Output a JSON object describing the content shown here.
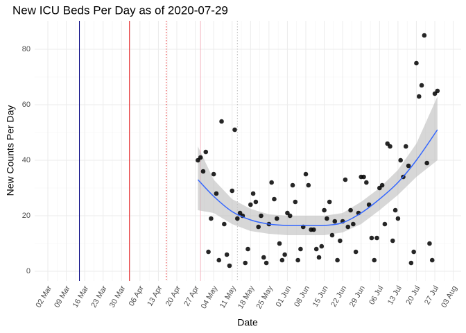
{
  "chart_data": {
    "type": "scatter",
    "title": "New ICU Beds Per Day as of 2020-07-29",
    "xlabel": "Date",
    "ylabel": "New Counts Per Day",
    "xlim": [
      "26 Feb",
      "06 Aug"
    ],
    "xticks": [
      "02 Mar",
      "09 Mar",
      "16 Mar",
      "23 Mar",
      "30 Mar",
      "06 Apr",
      "13 Apr",
      "20 Apr",
      "27 Apr",
      "04 May",
      "11 May",
      "18 May",
      "25 May",
      "01 Jun",
      "08 Jun",
      "15 Jun",
      "22 Jun",
      "29 Jun",
      "06 Jul",
      "13 Jul",
      "20 Jul",
      "27 Jul",
      "03 Aug"
    ],
    "ylim": [
      -3.5,
      90.25
    ],
    "yticks": [
      0,
      20,
      40,
      60,
      80
    ],
    "grid": true,
    "x": [
      "28 Apr",
      "29 Apr",
      "30 Apr",
      "01 May",
      "02 May",
      "03 May",
      "04 May",
      "05 May",
      "06 May",
      "07 May",
      "08 May",
      "09 May",
      "10 May",
      "11 May",
      "12 May",
      "13 May",
      "14 May",
      "15 May",
      "16 May",
      "17 May",
      "18 May",
      "19 May",
      "20 May",
      "21 May",
      "22 May",
      "23 May",
      "24 May",
      "25 May",
      "26 May",
      "27 May",
      "28 May",
      "29 May",
      "30 May",
      "31 May",
      "01 Jun",
      "02 Jun",
      "03 Jun",
      "04 Jun",
      "05 Jun",
      "06 Jun",
      "07 Jun",
      "08 Jun",
      "09 Jun",
      "10 Jun",
      "11 Jun",
      "12 Jun",
      "13 Jun",
      "14 Jun",
      "15 Jun",
      "16 Jun",
      "17 Jun",
      "18 Jun",
      "19 Jun",
      "20 Jun",
      "21 Jun",
      "22 Jun",
      "23 Jun",
      "24 Jun",
      "25 Jun",
      "26 Jun",
      "27 Jun",
      "28 Jun",
      "29 Jun",
      "30 Jun",
      "01 Jul",
      "02 Jul",
      "03 Jul",
      "04 Jul",
      "05 Jul",
      "06 Jul",
      "07 Jul",
      "08 Jul",
      "09 Jul",
      "10 Jul",
      "11 Jul",
      "12 Jul",
      "13 Jul",
      "14 Jul",
      "15 Jul",
      "16 Jul",
      "17 Jul",
      "18 Jul",
      "19 Jul",
      "20 Jul",
      "21 Jul",
      "22 Jul",
      "23 Jul",
      "24 Jul",
      "25 Jul",
      "26 Jul",
      "27 Jul",
      "28 Jul"
    ],
    "series": [
      {
        "color": "#000000",
        "values": [
          40,
          41,
          36,
          43,
          7,
          19,
          35,
          28,
          4,
          54,
          17,
          6,
          2,
          29,
          51,
          19,
          21,
          20,
          3,
          8,
          24,
          28,
          25,
          16,
          20,
          5,
          3,
          17,
          32,
          26,
          19,
          10,
          4,
          6,
          21,
          20,
          31,
          25,
          4,
          8,
          16,
          35,
          31,
          15,
          15,
          8,
          5,
          9,
          22,
          19,
          25,
          13,
          18,
          4,
          11,
          18,
          33,
          16,
          22,
          17,
          7,
          21,
          34,
          34,
          32,
          24,
          12,
          4,
          12,
          30,
          31,
          17,
          46,
          45,
          11,
          22,
          19,
          40,
          34,
          45,
          38,
          3,
          7,
          75,
          63,
          67,
          85,
          39,
          10,
          4,
          64,
          65
        ]
      }
    ],
    "smooth": {
      "color": "#3366ff",
      "band_color": "#bdbdbd",
      "x": [
        "28 Apr",
        "04 May",
        "11 May",
        "18 May",
        "25 May",
        "01 Jun",
        "08 Jun",
        "15 Jun",
        "22 Jun",
        "29 Jun",
        "06 Jul",
        "13 Jul",
        "20 Jul",
        "28 Jul"
      ],
      "values": [
        33,
        27,
        21.5,
        18.5,
        17,
        16.5,
        16.5,
        16.5,
        17.5,
        21,
        26,
        32,
        40,
        51
      ],
      "lower": [
        22,
        21,
        17,
        14.5,
        13.5,
        13,
        13,
        13,
        14,
        17,
        22,
        27.5,
        34,
        40
      ],
      "upper": [
        45,
        33,
        26,
        22.5,
        20.5,
        20,
        20,
        20,
        21,
        25,
        30,
        36.5,
        46,
        63
      ]
    },
    "vlines": [
      {
        "x": "14 Mar",
        "color": "#000080",
        "dash": "solid"
      },
      {
        "x": "02 Apr",
        "color": "#e41a1c",
        "dash": "solid"
      },
      {
        "x": "16 Apr",
        "color": "#e41a1c",
        "dash": "dotted"
      },
      {
        "x": "29 Apr",
        "color": "#f4b6c2",
        "dash": "solid"
      },
      {
        "x": "13 May",
        "color": "#bbbbbb",
        "dash": "dotted"
      }
    ]
  }
}
